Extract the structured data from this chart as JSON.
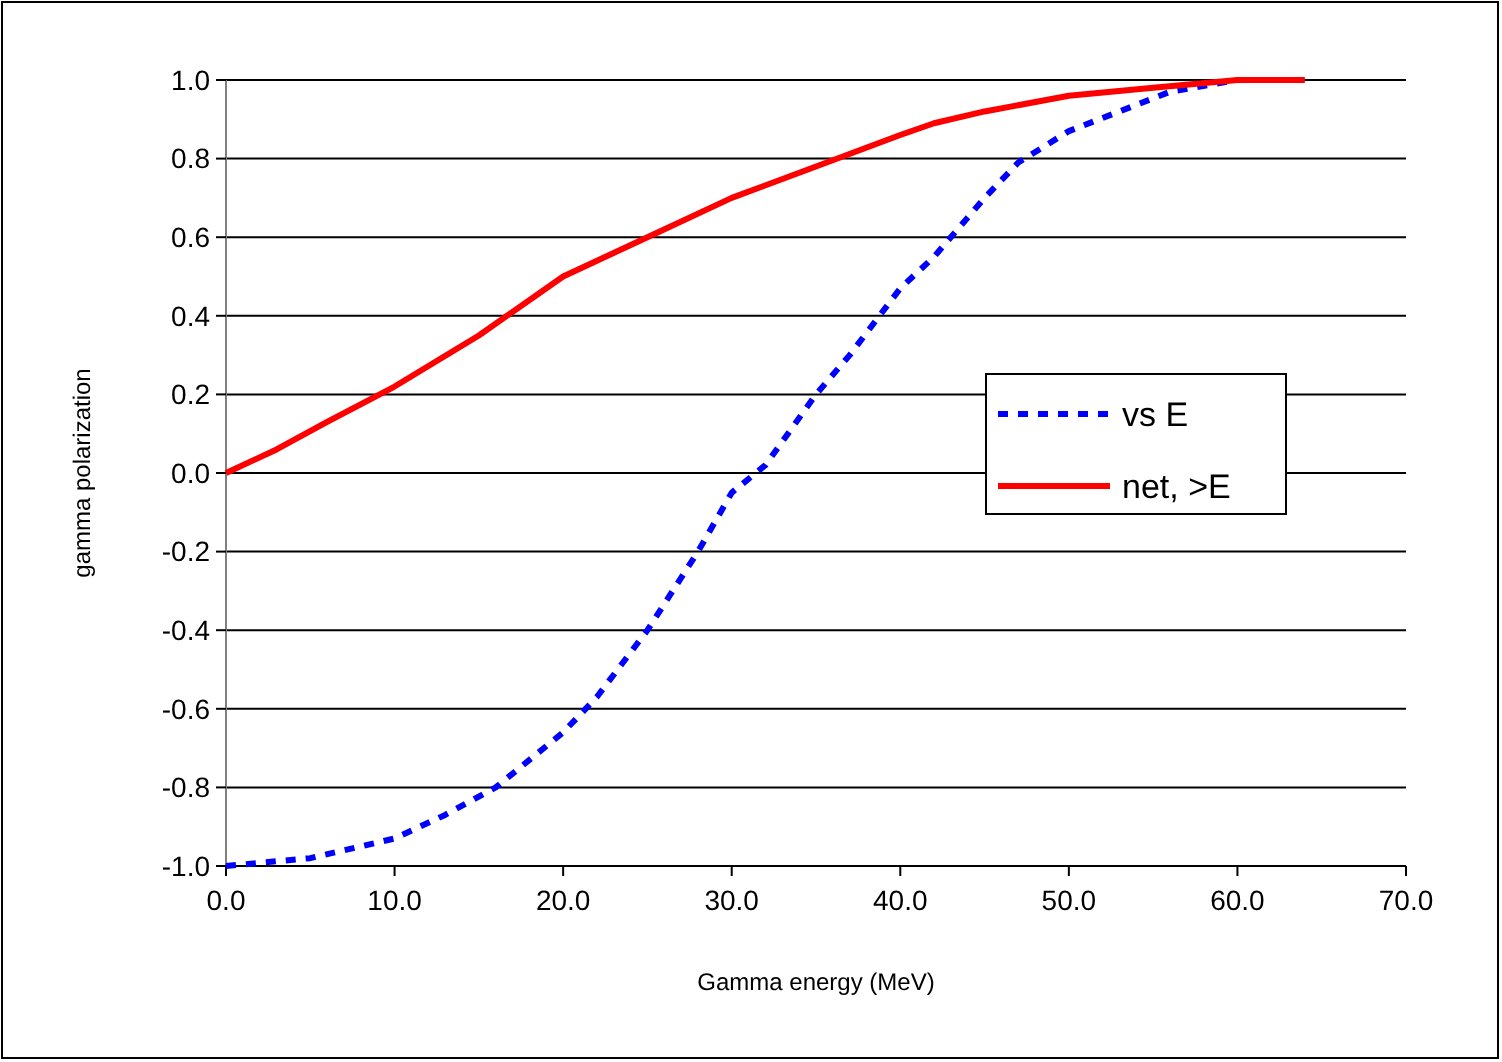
{
  "chart_data": {
    "type": "line",
    "xlabel": "Gamma energy (MeV)",
    "ylabel": "gamma polarization",
    "xlim": [
      0,
      70
    ],
    "ylim": [
      -1,
      1
    ],
    "xticks": [
      {
        "value": 0,
        "label": "0.0"
      },
      {
        "value": 10,
        "label": "10.0"
      },
      {
        "value": 20,
        "label": "20.0"
      },
      {
        "value": 30,
        "label": "30.0"
      },
      {
        "value": 40,
        "label": "40.0"
      },
      {
        "value": 50,
        "label": "50.0"
      },
      {
        "value": 60,
        "label": "60.0"
      },
      {
        "value": 70,
        "label": "70.0"
      }
    ],
    "yticks": [
      {
        "value": -1,
        "label": "-1.0"
      },
      {
        "value": -0.8,
        "label": "-0.8"
      },
      {
        "value": -0.6,
        "label": "-0.6"
      },
      {
        "value": -0.4,
        "label": "-0.4"
      },
      {
        "value": -0.2,
        "label": "-0.2"
      },
      {
        "value": 0,
        "label": "0.0"
      },
      {
        "value": 0.2,
        "label": "0.2"
      },
      {
        "value": 0.4,
        "label": "0.4"
      },
      {
        "value": 0.6,
        "label": "0.6"
      },
      {
        "value": 0.8,
        "label": "0.8"
      },
      {
        "value": 1,
        "label": "1.0"
      }
    ],
    "grid": "y",
    "legend": "right",
    "marker": "none",
    "series": [
      {
        "name": "vs E",
        "color": "#0000ff",
        "line_style": "dashed",
        "x": [
          0,
          5,
          10,
          13,
          16,
          20,
          22,
          25,
          28,
          30,
          32,
          35,
          37,
          40,
          42,
          45,
          47,
          50,
          53,
          56,
          60
        ],
        "values": [
          -1,
          -0.98,
          -0.93,
          -0.87,
          -0.8,
          -0.66,
          -0.57,
          -0.4,
          -0.2,
          -0.05,
          0.02,
          0.2,
          0.3,
          0.47,
          0.55,
          0.7,
          0.79,
          0.87,
          0.92,
          0.97,
          1
        ]
      },
      {
        "name": "net, >E",
        "color": "#ff0000",
        "line_style": "solid",
        "x": [
          0,
          3,
          6,
          10,
          15,
          20,
          25,
          30,
          35,
          40,
          42,
          45,
          50,
          55,
          60,
          64
        ],
        "values": [
          0,
          0.06,
          0.13,
          0.22,
          0.35,
          0.5,
          0.6,
          0.7,
          0.78,
          0.86,
          0.89,
          0.92,
          0.96,
          0.98,
          1,
          1
        ]
      }
    ]
  }
}
